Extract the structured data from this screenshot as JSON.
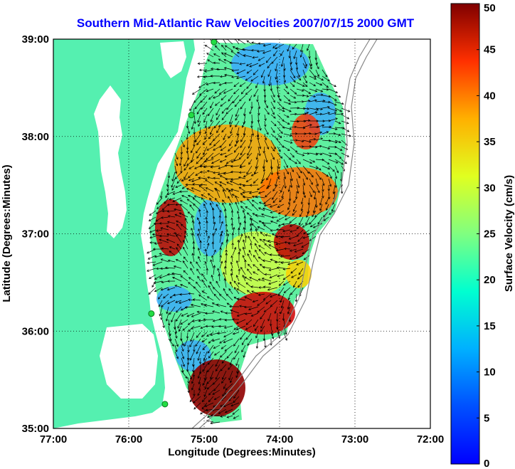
{
  "title": "Southern Mid-Atlantic Raw Velocities 2007/07/15 2000 GMT",
  "map": {
    "xlabel": "Longitude (Degrees:Minutes)",
    "ylabel": "Latitude (Degrees:Minutes)",
    "lon_range": [
      -77,
      -72
    ],
    "lat_range": [
      35,
      39
    ],
    "x_ticks": [
      {
        "value": -77,
        "label": "77:00"
      },
      {
        "value": -76,
        "label": "76:00"
      },
      {
        "value": -75,
        "label": "75:00"
      },
      {
        "value": -74,
        "label": "74:00"
      },
      {
        "value": -73,
        "label": "73:00"
      },
      {
        "value": -72,
        "label": "72:00"
      }
    ],
    "y_ticks": [
      {
        "value": 39,
        "label": "39:00"
      },
      {
        "value": 38,
        "label": "38:00"
      },
      {
        "value": 37,
        "label": "37:00"
      },
      {
        "value": 36,
        "label": "36:00"
      },
      {
        "value": 35,
        "label": "35:00"
      }
    ],
    "grid": true,
    "land_color": "#55f0b0",
    "water_color": "#ffffff",
    "arrow_color": "#000000",
    "station_color": "#22dd44",
    "stations": [
      {
        "lon": -74.87,
        "lat": 38.97
      },
      {
        "lon": -75.17,
        "lat": 38.22
      },
      {
        "lon": -75.7,
        "lat": 36.18
      },
      {
        "lon": -75.52,
        "lat": 35.25
      }
    ]
  },
  "colorbar": {
    "label": "Surface Velocity (cm/s)",
    "min": 0,
    "max": 50,
    "ticks": [
      "0",
      "5",
      "10",
      "15",
      "20",
      "25",
      "30",
      "35",
      "40",
      "45",
      "50"
    ],
    "colormap": "jet"
  }
}
